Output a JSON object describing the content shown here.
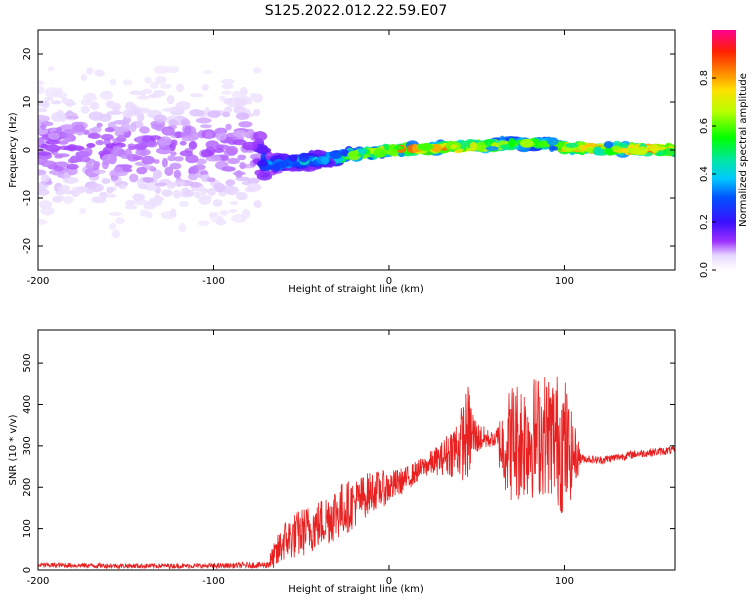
{
  "title": "S125.2022.012.22.59.E07",
  "chart_data": [
    {
      "type": "heatmap",
      "xlabel": "Height of straight line (km)",
      "ylabel": "Frequency (Hz)",
      "xlim": [
        -200,
        163
      ],
      "ylim": [
        -25,
        25
      ],
      "x_ticks": [
        -200,
        -100,
        0,
        100
      ],
      "y_ticks": [
        -20,
        -10,
        0,
        10,
        20
      ],
      "colorbar": {
        "label": "Normalized spectral amplitude",
        "range": [
          0.0,
          1.0
        ],
        "ticks": [
          0.0,
          0.2,
          0.4,
          0.6,
          0.8
        ]
      },
      "description_points": [
        {
          "x": -200,
          "freq_center": 0,
          "spread": 22,
          "amplitude": 0.12
        },
        {
          "x": -75,
          "freq_center": 0,
          "spread": 22,
          "amplitude": 0.12
        },
        {
          "x": -70,
          "freq_center": -3,
          "spread": 3,
          "amplitude": 0.35
        },
        {
          "x": -40,
          "freq_center": -2,
          "spread": 2,
          "amplitude": 0.5
        },
        {
          "x": -20,
          "freq_center": -1,
          "spread": 1.5,
          "amplitude": 0.7
        },
        {
          "x": 0,
          "freq_center": 0,
          "spread": 1,
          "amplitude": 0.9
        },
        {
          "x": 50,
          "freq_center": 0.8,
          "spread": 1,
          "amplitude": 0.9
        },
        {
          "x": 90,
          "freq_center": 1.5,
          "spread": 1.5,
          "amplitude": 0.7
        },
        {
          "x": 100,
          "freq_center": 0.5,
          "spread": 1,
          "amplitude": 0.85
        },
        {
          "x": 163,
          "freq_center": 0,
          "spread": 1,
          "amplitude": 0.95
        }
      ]
    },
    {
      "type": "line",
      "xlabel": "Height of straight line (km)",
      "ylabel": "SNR (10 * v/v)",
      "xlim": [
        -200,
        163
      ],
      "ylim": [
        0,
        580
      ],
      "x_ticks": [
        -200,
        -100,
        0,
        100
      ],
      "y_ticks": [
        0,
        100,
        200,
        300,
        400,
        500
      ],
      "series": [
        {
          "name": "SNR",
          "color": "#e82020",
          "x": [
            -200,
            -150,
            -100,
            -70,
            -65,
            -60,
            -50,
            -40,
            -30,
            -20,
            -10,
            0,
            10,
            20,
            30,
            40,
            45,
            50,
            60,
            65,
            70,
            80,
            90,
            95,
            100,
            103,
            110,
            120,
            140,
            163
          ],
          "y": [
            12,
            10,
            10,
            12,
            30,
            70,
            90,
            110,
            140,
            160,
            190,
            200,
            220,
            250,
            270,
            300,
            330,
            320,
            315,
            300,
            310,
            320,
            330,
            320,
            300,
            280,
            270,
            265,
            280,
            290
          ],
          "noise_amplitude": [
            6,
            6,
            6,
            8,
            40,
            50,
            60,
            60,
            70,
            60,
            50,
            40,
            30,
            25,
            40,
            80,
            120,
            40,
            15,
            100,
            150,
            150,
            150,
            160,
            180,
            120,
            10,
            10,
            10,
            10
          ]
        }
      ]
    }
  ]
}
